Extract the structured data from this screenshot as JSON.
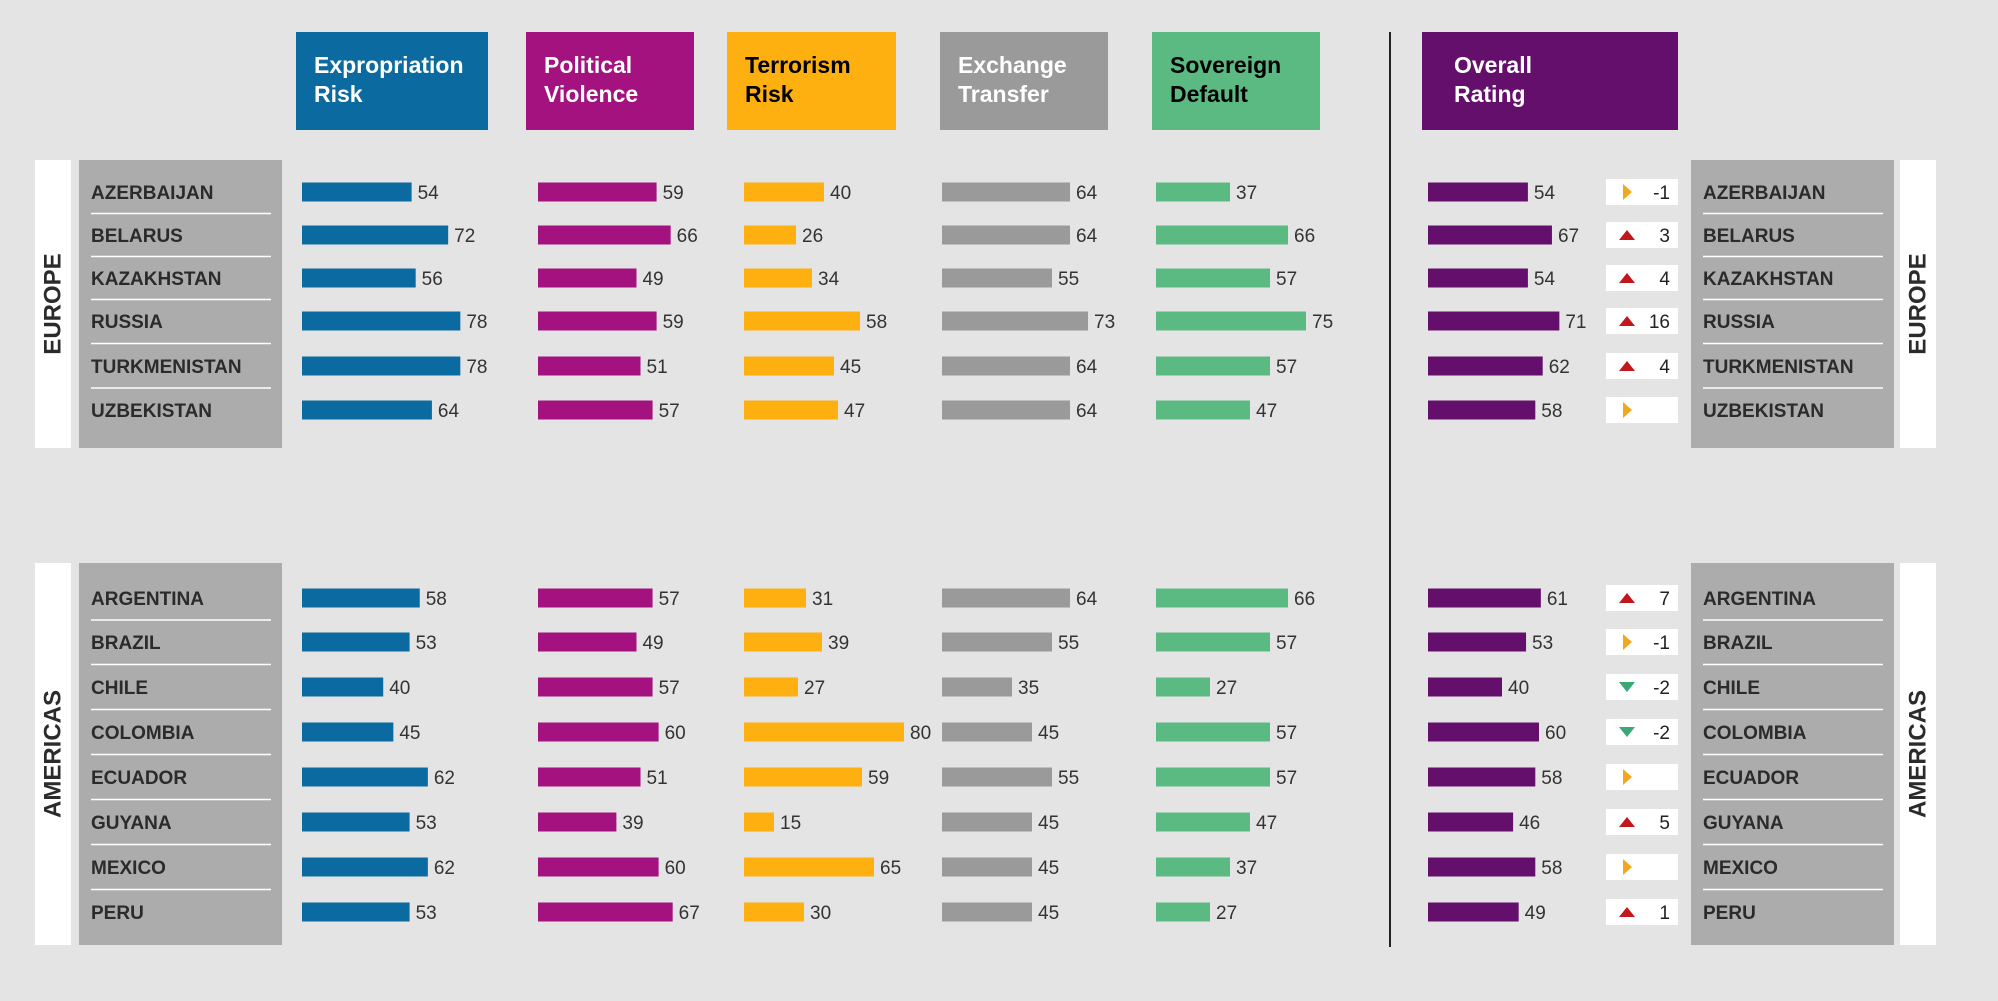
{
  "chart_data": {
    "type": "bar",
    "metrics": [
      {
        "key": "expropriation",
        "label_lines": [
          "Expropriation",
          "Risk"
        ],
        "color": "#0b6ba0",
        "text_color": "#ffffff"
      },
      {
        "key": "political",
        "label_lines": [
          "Political",
          "Violence"
        ],
        "color": "#a3127f",
        "text_color": "#ffffff"
      },
      {
        "key": "terrorism",
        "label_lines": [
          "Terrorism",
          "Risk"
        ],
        "color": "#fdb00f",
        "text_color": "#000000"
      },
      {
        "key": "exchange",
        "label_lines": [
          "Exchange",
          "Transfer"
        ],
        "color": "#9a9a9a",
        "text_color": "#ffffff"
      },
      {
        "key": "sovereign",
        "label_lines": [
          "Sovereign",
          "Default"
        ],
        "color": "#5bba82",
        "text_color": "#000000"
      },
      {
        "key": "overall",
        "label_lines": [
          "Overall",
          "Rating"
        ],
        "color": "#640f6c",
        "text_color": "#ffffff"
      }
    ],
    "regions": [
      {
        "name": "EUROPE",
        "countries": [
          {
            "name": "AZERBAIJAN",
            "values": [
              54,
              59,
              40,
              64,
              37,
              54
            ],
            "change": "-1",
            "direction": "right"
          },
          {
            "name": "BELARUS",
            "values": [
              72,
              66,
              26,
              64,
              66,
              67
            ],
            "change": "3",
            "direction": "up"
          },
          {
            "name": "KAZAKHSTAN",
            "values": [
              56,
              49,
              34,
              55,
              57,
              54
            ],
            "change": "4",
            "direction": "up"
          },
          {
            "name": "RUSSIA",
            "values": [
              78,
              59,
              58,
              73,
              75,
              71
            ],
            "change": "16",
            "direction": "up"
          },
          {
            "name": "TURKMENISTAN",
            "values": [
              78,
              51,
              45,
              64,
              57,
              62
            ],
            "change": "4",
            "direction": "up"
          },
          {
            "name": "UZBEKISTAN",
            "values": [
              64,
              57,
              47,
              64,
              47,
              58
            ],
            "change": "",
            "direction": "right"
          }
        ]
      },
      {
        "name": "AMERICAS",
        "countries": [
          {
            "name": "ARGENTINA",
            "values": [
              58,
              57,
              31,
              64,
              66,
              61
            ],
            "change": "7",
            "direction": "up"
          },
          {
            "name": "BRAZIL",
            "values": [
              53,
              49,
              39,
              55,
              57,
              53
            ],
            "change": "-1",
            "direction": "right"
          },
          {
            "name": "CHILE",
            "values": [
              40,
              57,
              27,
              35,
              27,
              40
            ],
            "change": "-2",
            "direction": "down"
          },
          {
            "name": "COLOMBIA",
            "values": [
              45,
              60,
              80,
              45,
              57,
              60
            ],
            "change": "-2",
            "direction": "down"
          },
          {
            "name": "ECUADOR",
            "values": [
              62,
              51,
              59,
              55,
              57,
              58
            ],
            "change": "",
            "direction": "right"
          },
          {
            "name": "GUYANA",
            "values": [
              53,
              39,
              15,
              45,
              47,
              46
            ],
            "change": "5",
            "direction": "up"
          },
          {
            "name": "MEXICO",
            "values": [
              62,
              60,
              65,
              45,
              37,
              58
            ],
            "change": "",
            "direction": "right"
          },
          {
            "name": "PERU",
            "values": [
              53,
              67,
              30,
              45,
              27,
              49
            ],
            "change": "1",
            "direction": "up"
          }
        ]
      }
    ],
    "direction_colors": {
      "up": "#c1171d",
      "down": "#3aa877",
      "right": "#f2a81d"
    }
  }
}
